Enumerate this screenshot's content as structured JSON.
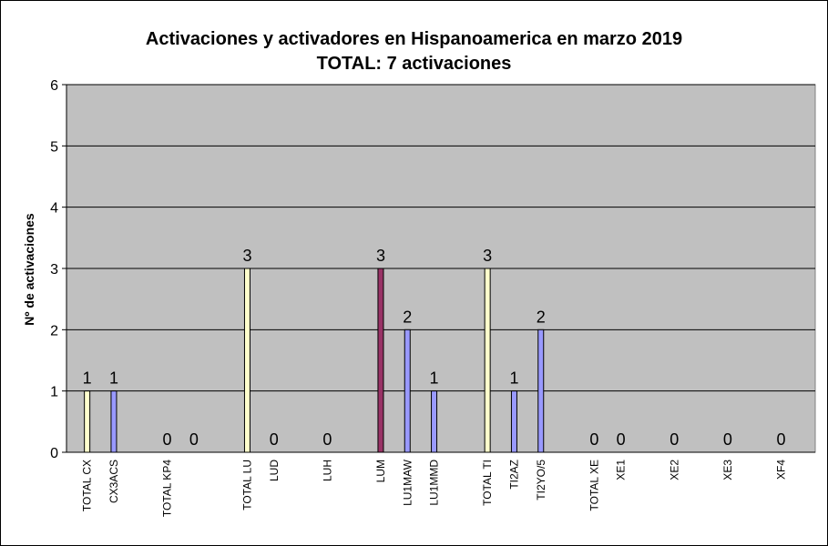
{
  "chart_data": {
    "type": "bar",
    "title": "Activaciones y activadores en Hispanoamerica en marzo 2019",
    "subtitle": "TOTAL: 7 activaciones",
    "ylabel": "Nº de activaciones",
    "xlabel": "",
    "ylim": [
      0,
      6
    ],
    "yticks": [
      0,
      1,
      2,
      3,
      4,
      5,
      6
    ],
    "grid": true,
    "legend": "none",
    "plot_background": "#C0C0C0",
    "categories": [
      "TOTAL CX",
      "CX3ACS",
      "TOTAL KP4",
      "",
      "TOTAL LU",
      "LUD",
      "LUH",
      "LUM",
      "LU1MAW",
      "LU1MMD",
      "TOTAL TI",
      "TI2AZ",
      "TI2YO/5",
      "TOTAL XE",
      "XE1",
      "XE2",
      "XE3",
      "XF4"
    ],
    "values": [
      1,
      1,
      0,
      0,
      3,
      0,
      0,
      3,
      2,
      1,
      3,
      1,
      2,
      0,
      0,
      0,
      0,
      0
    ],
    "bar_colors": [
      "#FFFFCC",
      "#9999FF",
      "#FFFFCC",
      "#9999FF",
      "#FFFFCC",
      "#9999FF",
      "#9999FF",
      "#993366",
      "#9999FF",
      "#9999FF",
      "#FFFFCC",
      "#9999FF",
      "#9999FF",
      "#FFFFCC",
      "#9999FF",
      "#9999FF",
      "#9999FF",
      "#9999FF"
    ],
    "slots": [
      1,
      2,
      4,
      5,
      7,
      8,
      10,
      12,
      13,
      14,
      16,
      17,
      18,
      20,
      21,
      23,
      25,
      27
    ]
  }
}
